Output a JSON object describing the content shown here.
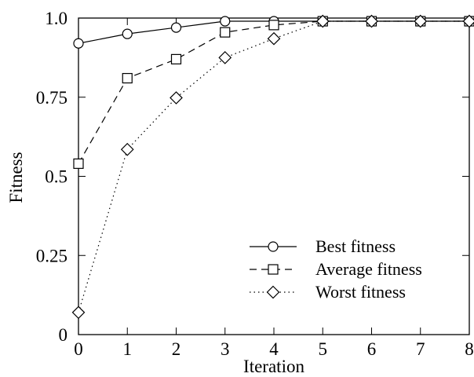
{
  "chart_data": {
    "type": "line",
    "title": "",
    "xlabel": "Iteration",
    "ylabel": "Fitness",
    "x": [
      0,
      1,
      2,
      3,
      4,
      5,
      6,
      7,
      8
    ],
    "xlim": [
      0,
      8
    ],
    "ylim": [
      0,
      1.0
    ],
    "xticks": [
      "0",
      "1",
      "2",
      "3",
      "4",
      "5",
      "6",
      "7",
      "8"
    ],
    "yticks": [
      {
        "value": 0,
        "label": "0"
      },
      {
        "value": 0.25,
        "label": "0.25"
      },
      {
        "value": 0.5,
        "label": "0.5"
      },
      {
        "value": 0.75,
        "label": "0.75"
      },
      {
        "value": 1.0,
        "label": "1.0"
      }
    ],
    "grid": false,
    "legend_position": "bottom-right",
    "series": [
      {
        "name": "Best fitness",
        "marker": "circle",
        "line_style": "solid",
        "color": "#000000",
        "values": [
          0.92,
          0.95,
          0.97,
          0.99,
          0.99,
          0.99,
          0.99,
          0.99,
          0.99
        ]
      },
      {
        "name": "Average fitness",
        "marker": "square",
        "line_style": "dashed",
        "color": "#000000",
        "values": [
          0.54,
          0.81,
          0.87,
          0.955,
          0.978,
          0.99,
          0.99,
          0.99,
          0.99
        ]
      },
      {
        "name": "Worst fitness",
        "marker": "diamond",
        "line_style": "dotted",
        "color": "#000000",
        "values": [
          0.07,
          0.585,
          0.748,
          0.875,
          0.935,
          0.99,
          0.99,
          0.99,
          0.99
        ]
      }
    ]
  }
}
